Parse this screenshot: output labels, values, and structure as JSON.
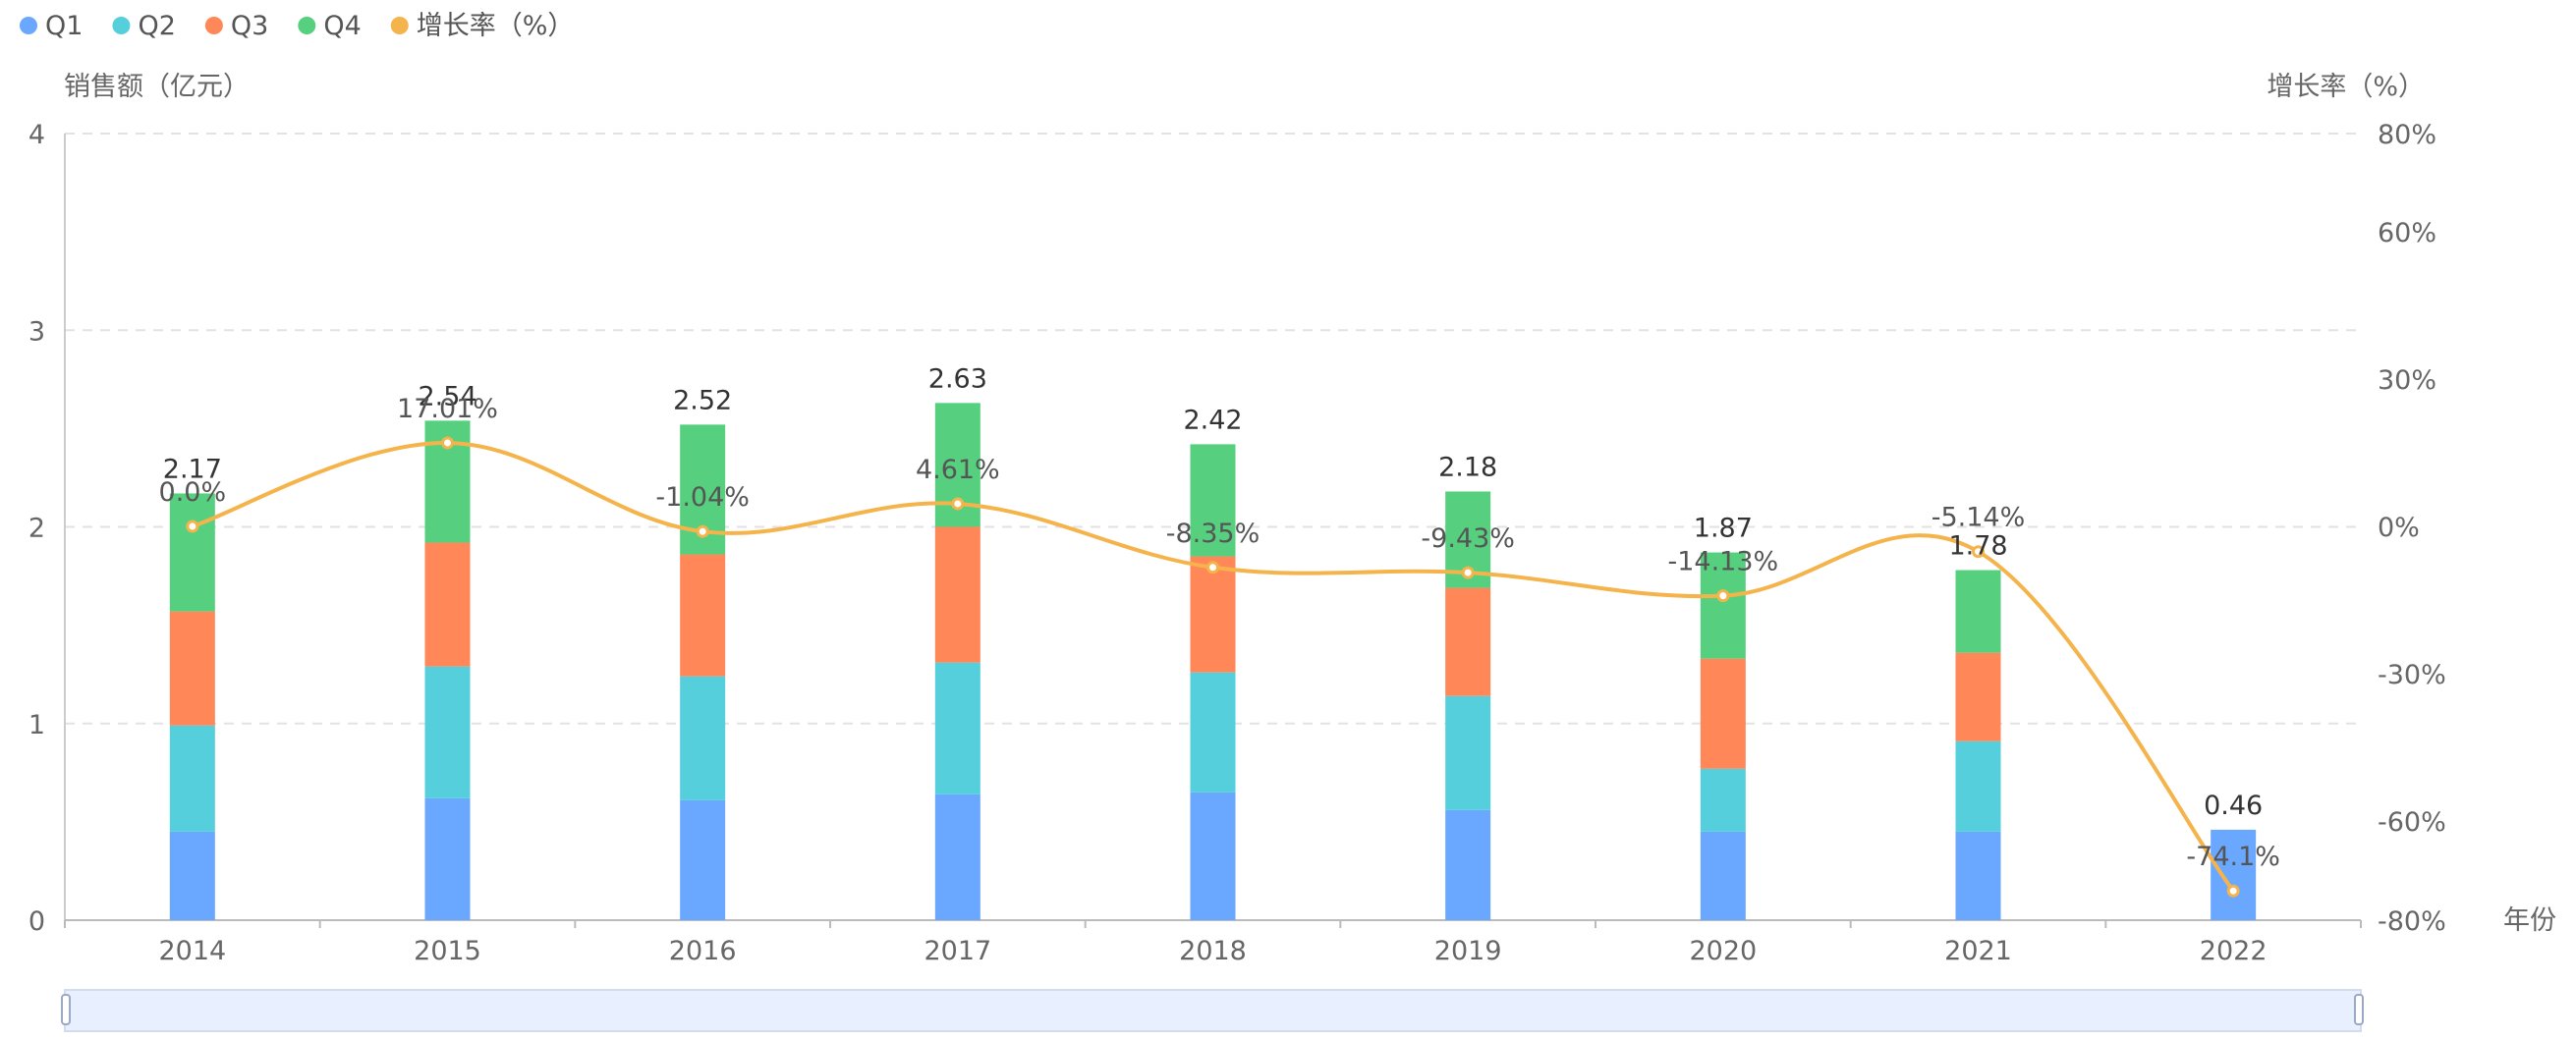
{
  "chart_data": {
    "type": "bar+line",
    "categories": [
      "2014",
      "2015",
      "2016",
      "2017",
      "2018",
      "2019",
      "2020",
      "2021",
      "2022"
    ],
    "series": [
      {
        "name": "Q1",
        "values": [
          0.45,
          0.62,
          0.61,
          0.64,
          0.65,
          0.56,
          0.45,
          0.45,
          0.46
        ]
      },
      {
        "name": "Q2",
        "values": [
          0.54,
          0.67,
          0.63,
          0.67,
          0.61,
          0.58,
          0.32,
          0.46,
          0
        ]
      },
      {
        "name": "Q3",
        "values": [
          0.58,
          0.63,
          0.62,
          0.69,
          0.59,
          0.55,
          0.56,
          0.45,
          0
        ]
      },
      {
        "name": "Q4",
        "values": [
          0.6,
          0.62,
          0.66,
          0.63,
          0.57,
          0.49,
          0.54,
          0.42,
          0
        ]
      }
    ],
    "totals": [
      "2.17",
      "2.54",
      "2.52",
      "2.63",
      "2.42",
      "2.18",
      "1.87",
      "1.78",
      "0.46"
    ],
    "growth": {
      "name": "增长率（%）",
      "values": [
        0.0,
        17.01,
        -1.04,
        4.61,
        -8.35,
        -9.43,
        -14.13,
        -5.14,
        -74.1
      ],
      "labels": [
        "0.0%",
        "17.01%",
        "-1.04%",
        "4.61%",
        "-8.35%",
        "-9.43%",
        "-14.13%",
        "-5.14%",
        "-74.1%"
      ]
    },
    "y_left": {
      "label": "销售额（亿元）",
      "ticks": [
        "0",
        "1",
        "2",
        "3",
        "4"
      ],
      "min": 0,
      "max": 4
    },
    "y_right": {
      "label": "增长率（%）",
      "ticks": [
        "-80%",
        "-60%",
        "-30%",
        "0%",
        "30%",
        "60%",
        "80%"
      ],
      "tick_values": [
        -80,
        -60,
        -30,
        0,
        30,
        60,
        80
      ]
    },
    "x_label": "年份",
    "legend": [
      {
        "name": "Q1",
        "color": "#6aa7ff"
      },
      {
        "name": "Q2",
        "color": "#56cfdc"
      },
      {
        "name": "Q3",
        "color": "#ff8758"
      },
      {
        "name": "Q4",
        "color": "#56d07f"
      },
      {
        "name": "增长率（%）",
        "color": "#f5b44b"
      }
    ],
    "legend_position": "top-left",
    "grid": true,
    "has_data_zoom": true
  }
}
